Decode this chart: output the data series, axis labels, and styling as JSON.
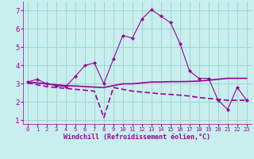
{
  "xlabel": "Windchill (Refroidissement éolien,°C)",
  "xlim": [
    -0.5,
    23.5
  ],
  "ylim": [
    0.8,
    7.5
  ],
  "yticks": [
    1,
    2,
    3,
    4,
    5,
    6,
    7
  ],
  "xticks": [
    0,
    1,
    2,
    3,
    4,
    5,
    6,
    7,
    8,
    9,
    10,
    11,
    12,
    13,
    14,
    15,
    16,
    17,
    18,
    19,
    20,
    21,
    22,
    23
  ],
  "background_color": "#c8eeee",
  "grid_color": "#a0d4d4",
  "line_color": "#990099",
  "line1_x": [
    0,
    1,
    2,
    3,
    4,
    5,
    6,
    7,
    8,
    9,
    10,
    11,
    12,
    13,
    14,
    15,
    16,
    17,
    18,
    19,
    20,
    21,
    22,
    23
  ],
  "line1_y": [
    3.1,
    3.25,
    3.0,
    2.9,
    2.85,
    3.4,
    4.0,
    4.15,
    3.0,
    4.35,
    5.65,
    5.5,
    6.55,
    7.05,
    6.7,
    6.35,
    5.2,
    3.7,
    3.3,
    3.3,
    2.1,
    1.6,
    2.8,
    2.1
  ],
  "line2_x": [
    0,
    1,
    2,
    3,
    4,
    5,
    6,
    7,
    8,
    9,
    10,
    11,
    12,
    13,
    14,
    15,
    16,
    17,
    18,
    19,
    20,
    21,
    22,
    23
  ],
  "line2_y": [
    3.1,
    3.05,
    3.0,
    2.95,
    2.9,
    2.88,
    2.85,
    2.82,
    2.8,
    2.9,
    3.0,
    3.0,
    3.05,
    3.1,
    3.1,
    3.12,
    3.12,
    3.13,
    3.15,
    3.2,
    3.25,
    3.3,
    3.3,
    3.3
  ],
  "line3_x": [
    0,
    1,
    2,
    3,
    4,
    5,
    6,
    7,
    8,
    9,
    10,
    11,
    12,
    13,
    14,
    15,
    16,
    17,
    18,
    19,
    20,
    21,
    22,
    23
  ],
  "line3_y": [
    3.05,
    2.95,
    2.85,
    2.8,
    2.75,
    2.7,
    2.65,
    2.6,
    1.15,
    2.8,
    2.7,
    2.6,
    2.55,
    2.5,
    2.45,
    2.42,
    2.38,
    2.33,
    2.25,
    2.2,
    2.15,
    2.1,
    2.1,
    2.1
  ]
}
